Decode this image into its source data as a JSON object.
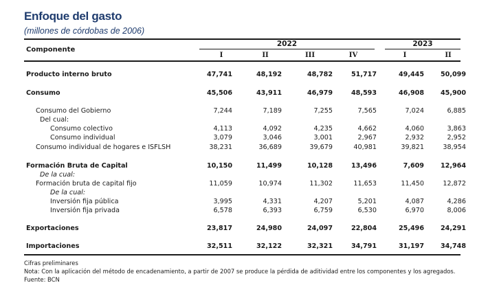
{
  "title": "Enfoque del gasto",
  "subtitle": "(millones de córdobas de 2006)",
  "header": {
    "component_label": "Componente",
    "years": [
      {
        "label": "2022",
        "quarters": [
          "I",
          "II",
          "III",
          "IV"
        ]
      },
      {
        "label": "2023",
        "quarters": [
          "I",
          "II"
        ]
      }
    ]
  },
  "rows": [
    {
      "label": "Producto interno bruto",
      "style": "bold",
      "indent": 0,
      "values": [
        "47,741",
        "48,192",
        "48,782",
        "51,717",
        "49,445",
        "50,099"
      ]
    },
    {
      "label": "Consumo",
      "style": "bold",
      "indent": 0,
      "values": [
        "45,506",
        "43,911",
        "46,979",
        "48,593",
        "46,908",
        "45,900"
      ]
    },
    {
      "label": "Consumo del Gobierno",
      "style": "normal",
      "indent": 1,
      "values": [
        "7,244",
        "7,189",
        "7,255",
        "7,565",
        "7,024",
        "6,885"
      ]
    },
    {
      "label": "Del cual:",
      "style": "normal",
      "indent": 2,
      "values": []
    },
    {
      "label": "Consumo colectivo",
      "style": "normal",
      "indent": 3,
      "values": [
        "4,113",
        "4,092",
        "4,235",
        "4,662",
        "4,060",
        "3,863"
      ]
    },
    {
      "label": "Consumo individual",
      "style": "normal",
      "indent": 3,
      "values": [
        "3,079",
        "3,046",
        "3,001",
        "2,967",
        "2,932",
        "2,952"
      ]
    },
    {
      "label": "Consumo individual de hogares e ISFLSH",
      "style": "normal",
      "indent": 1,
      "values": [
        "38,231",
        "36,689",
        "39,679",
        "40,981",
        "39,821",
        "38,954"
      ]
    },
    {
      "label": "Formación Bruta de Capital",
      "style": "bold",
      "indent": 0,
      "values": [
        "10,150",
        "11,499",
        "10,128",
        "13,496",
        "7,609",
        "12,964"
      ]
    },
    {
      "label": "De la cual:",
      "style": "italic",
      "indent": 2,
      "values": []
    },
    {
      "label": "Formación bruta de capital fijo",
      "style": "normal",
      "indent": 1,
      "values": [
        "11,059",
        "10,974",
        "11,302",
        "11,653",
        "11,450",
        "12,872"
      ]
    },
    {
      "label": "De la cual:",
      "style": "italic",
      "indent": 3,
      "values": []
    },
    {
      "label": "Inversión fija pública",
      "style": "normal",
      "indent": 3,
      "values": [
        "3,995",
        "4,331",
        "4,207",
        "5,201",
        "4,087",
        "4,286"
      ]
    },
    {
      "label": "Inversión fija privada",
      "style": "normal",
      "indent": 3,
      "values": [
        "6,578",
        "6,393",
        "6,759",
        "6,530",
        "6,970",
        "8,006"
      ]
    },
    {
      "label": "Exportaciones",
      "style": "bold",
      "indent": 0,
      "values": [
        "23,817",
        "24,980",
        "24,097",
        "22,804",
        "25,496",
        "24,291"
      ]
    },
    {
      "label": "Importaciones",
      "style": "bold",
      "indent": 0,
      "values": [
        "32,511",
        "32,122",
        "32,321",
        "34,791",
        "31,197",
        "34,748"
      ]
    }
  ],
  "notes": [
    "Cifras preliminares",
    "Nota: Con la aplicación del método de encadenamiento, a partir de 2007 se produce la pérdida de aditividad entre los componentes y los agregados.",
    "Fuente: BCN"
  ]
}
